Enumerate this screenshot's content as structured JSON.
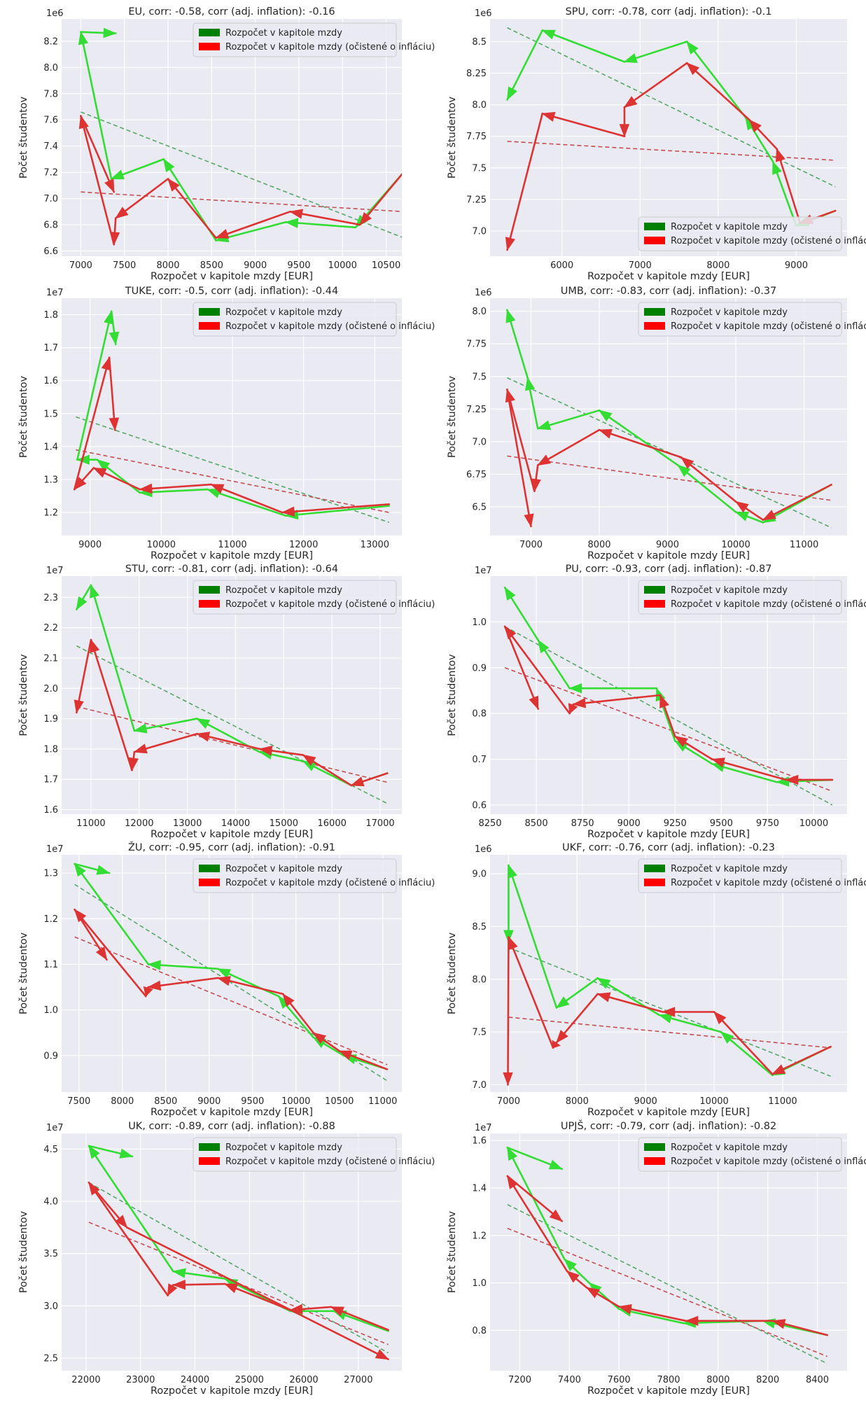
{
  "figure": {
    "colors": {
      "background": "#eaeaf2",
      "grid": "#ffffff",
      "nominal_line": "#33dd33",
      "adjusted_line": "#dd3333",
      "nominal_trend": "#55a868",
      "adjusted_trend": "#c44e52",
      "legend_nominal": "#008000",
      "legend_adjusted": "#ff0000"
    },
    "legend": [
      "Rozpočet v kapitole mzdy",
      "Rozpočet v kapitole mzdy (očistené o infláciu)"
    ],
    "xlabel": "Rozpočet v kapitole mzdy [EUR]",
    "ylabel": "Počet študentov"
  },
  "chart_data": [
    {
      "type": "line",
      "title": "EU, corr: -0.58, corr (adj. inflation): -0.16",
      "xlabel": "Rozpočet v kapitole mzdy [EUR]",
      "ylabel": "Počet študentov",
      "y_scale": "1e6",
      "legend_placement": "top-right",
      "grid": true,
      "xlim": [
        6780,
        10680
      ],
      "ylim": [
        6.56,
        8.37
      ],
      "xticks": [
        7000,
        7500,
        8000,
        8500,
        9000,
        9500,
        10000,
        10500
      ],
      "yticks": [
        6.6,
        6.8,
        7.0,
        7.2,
        7.4,
        7.6,
        7.8,
        8.0,
        8.2
      ],
      "series": [
        {
          "name": "Rozpočet v kapitole mzdy",
          "x": [
            10700,
            10150,
            9350,
            8550,
            7950,
            7350,
            7000,
            7400
          ],
          "y": [
            7.2,
            6.78,
            6.82,
            6.68,
            7.3,
            7.15,
            8.27,
            8.26
          ]
        },
        {
          "name": "Rozpočet v kapitole mzdy (očistené o infláciu)",
          "x": [
            10700,
            10200,
            9400,
            8550,
            8000,
            7400,
            7380,
            7000,
            7380
          ],
          "y": [
            7.2,
            6.8,
            6.9,
            6.7,
            7.15,
            6.85,
            6.65,
            7.63,
            7.05
          ]
        }
      ],
      "trend_lines": [
        {
          "x": [
            7000,
            10700
          ],
          "y": [
            7.66,
            6.7
          ]
        },
        {
          "x": [
            7000,
            10700
          ],
          "y": [
            7.05,
            6.9
          ]
        }
      ]
    },
    {
      "type": "line",
      "title": "SPU, corr: -0.78, corr (adj. inflation): -0.1",
      "xlabel": "Rozpočet v kapitole mzdy [EUR]",
      "ylabel": "Počet študentov",
      "y_scale": "1e6",
      "legend_placement": "bottom-right",
      "grid": true,
      "xlim": [
        5080,
        9650
      ],
      "ylim": [
        6.8,
        8.68
      ],
      "xticks": [
        6000,
        7000,
        8000,
        9000
      ],
      "yticks": [
        7.0,
        7.25,
        7.5,
        7.75,
        8.0,
        8.25,
        8.5
      ],
      "series": [
        {
          "name": "Rozpočet v kapitole mzdy",
          "x": [
            9500,
            9000,
            8700,
            8350,
            7600,
            6800,
            5750,
            5300
          ],
          "y": [
            7.16,
            7.04,
            7.55,
            7.9,
            8.5,
            8.34,
            8.59,
            8.04
          ]
        },
        {
          "name": "Rozpočet v kapitole mzdy (očistené o infláciu)",
          "x": [
            9500,
            9050,
            8750,
            8400,
            7600,
            6800,
            6800,
            5750,
            5300
          ],
          "y": [
            7.16,
            7.06,
            7.65,
            7.88,
            8.33,
            7.98,
            7.75,
            7.93,
            6.85
          ]
        }
      ],
      "trend_lines": [
        {
          "x": [
            5300,
            9500
          ],
          "y": [
            8.61,
            7.35
          ]
        },
        {
          "x": [
            5300,
            9500
          ],
          "y": [
            7.71,
            7.56
          ]
        }
      ]
    },
    {
      "type": "line",
      "title": "TUKE, corr: -0.5, corr (adj. inflation): -0.44",
      "xlabel": "Rozpočet v kapitole mzdy [EUR]",
      "ylabel": "Počet študentov",
      "y_scale": "1e7",
      "legend_placement": "top-right",
      "grid": true,
      "xlim": [
        8600,
        13380
      ],
      "ylim": [
        1.13,
        1.85
      ],
      "xticks": [
        9000,
        10000,
        11000,
        12000,
        13000
      ],
      "yticks": [
        1.2,
        1.3,
        1.4,
        1.5,
        1.6,
        1.7,
        1.8
      ],
      "series": [
        {
          "name": "Rozpočet v kapitole mzdy",
          "x": [
            13200,
            11750,
            10650,
            9700,
            9100,
            8820,
            9300,
            9360
          ],
          "y": [
            1.22,
            1.19,
            1.27,
            1.26,
            1.36,
            1.36,
            1.81,
            1.71
          ]
        },
        {
          "name": "Rozpočet v kapitole mzdy (očistené o infláciu)",
          "x": [
            13200,
            11700,
            10700,
            9700,
            9050,
            8780,
            9270,
            9350
          ],
          "y": [
            1.225,
            1.2,
            1.285,
            1.27,
            1.335,
            1.27,
            1.67,
            1.45
          ]
        }
      ],
      "trend_lines": [
        {
          "x": [
            8800,
            13200
          ],
          "y": [
            1.49,
            1.17
          ]
        },
        {
          "x": [
            8800,
            13200
          ],
          "y": [
            1.39,
            1.2
          ]
        }
      ]
    },
    {
      "type": "line",
      "title": "UMB, corr: -0.83, corr (adj. inflation): -0.37",
      "xlabel": "Rozpočet v kapitole mzdy [EUR]",
      "ylabel": "Počet študentov",
      "y_scale": "1e6",
      "legend_placement": "top-right",
      "grid": true,
      "xlim": [
        6400,
        11630
      ],
      "ylim": [
        6.28,
        8.1
      ],
      "xticks": [
        7000,
        8000,
        9000,
        10000,
        11000
      ],
      "yticks": [
        6.5,
        6.75,
        7.0,
        7.25,
        7.5,
        7.75,
        8.0
      ],
      "series": [
        {
          "name": "Rozpočet v kapitole mzdy",
          "x": [
            11400,
            10400,
            10000,
            9150,
            8000,
            7100,
            6950,
            6650
          ],
          "y": [
            6.67,
            6.38,
            6.46,
            6.82,
            7.24,
            7.1,
            7.49,
            8.01
          ]
        },
        {
          "name": "Rozpočet v kapitole mzdy (očistené o infláciu)",
          "x": [
            11400,
            10400,
            10000,
            9200,
            8000,
            7100,
            7050,
            6650,
            7000
          ],
          "y": [
            6.67,
            6.4,
            6.54,
            6.88,
            7.09,
            6.82,
            6.62,
            7.4,
            6.35
          ]
        }
      ],
      "trend_lines": [
        {
          "x": [
            6650,
            11400
          ],
          "y": [
            7.49,
            6.34
          ]
        },
        {
          "x": [
            6650,
            11400
          ],
          "y": [
            6.89,
            6.55
          ]
        }
      ]
    },
    {
      "type": "line",
      "title": "STU, corr: -0.81, corr (adj. inflation): -0.64",
      "xlabel": "Rozpočet v kapitole mzdy [EUR]",
      "ylabel": "Počet študentov",
      "y_scale": "1e7",
      "legend_placement": "top-right",
      "grid": true,
      "xlim": [
        10390,
        17450
      ],
      "ylim": [
        1.585,
        2.37
      ],
      "xticks": [
        11000,
        12000,
        13000,
        14000,
        15000,
        16000,
        17000
      ],
      "yticks": [
        1.6,
        1.7,
        1.8,
        1.9,
        2.0,
        2.1,
        2.2,
        2.3
      ],
      "series": [
        {
          "name": "Rozpočet v kapitole mzdy",
          "x": [
            17150,
            16400,
            15400,
            14500,
            13200,
            11900,
            11000,
            10700
          ],
          "y": [
            1.72,
            1.68,
            1.76,
            1.79,
            1.9,
            1.86,
            2.34,
            2.26
          ]
        },
        {
          "name": "Rozpočet v kapitole mzdy (očistené o infláciu)",
          "x": [
            17150,
            16400,
            15400,
            14500,
            13200,
            11900,
            11850,
            11000,
            10700
          ],
          "y": [
            1.72,
            1.68,
            1.78,
            1.8,
            1.85,
            1.79,
            1.73,
            2.16,
            1.92
          ]
        }
      ],
      "trend_lines": [
        {
          "x": [
            10700,
            17150
          ],
          "y": [
            2.14,
            1.62
          ]
        },
        {
          "x": [
            10700,
            17150
          ],
          "y": [
            1.94,
            1.69
          ]
        }
      ]
    },
    {
      "type": "line",
      "title": "PU, corr: -0.93, corr (adj. inflation): -0.87",
      "xlabel": "Rozpočet v kapitole mzdy [EUR]",
      "ylabel": "Počet študentov",
      "y_scale": "1e7",
      "legend_placement": "top-right",
      "grid": true,
      "xlim": [
        8250,
        10180
      ],
      "ylim": [
        0.58,
        1.1
      ],
      "xticks": [
        8250,
        8500,
        8750,
        9000,
        9250,
        9500,
        9750,
        10000
      ],
      "yticks": [
        0.6,
        0.7,
        0.8,
        0.9,
        1.0
      ],
      "series": [
        {
          "name": "Rozpočet v kapitole mzdy",
          "x": [
            10100,
            9800,
            9450,
            9250,
            9150,
            8680,
            8510,
            8330
          ],
          "y": [
            0.655,
            0.65,
            0.69,
            0.74,
            0.855,
            0.855,
            0.96,
            1.075
          ]
        },
        {
          "name": "Rozpočet v kapitole mzdy (očistené o infláciu)",
          "x": [
            10100,
            9850,
            9450,
            9250,
            9170,
            8700,
            8680,
            8330,
            8510
          ],
          "y": [
            0.655,
            0.655,
            0.7,
            0.75,
            0.84,
            0.82,
            0.8,
            0.99,
            0.81
          ]
        }
      ],
      "trend_lines": [
        {
          "x": [
            8330,
            10100
          ],
          "y": [
            0.99,
            0.6
          ]
        },
        {
          "x": [
            8330,
            10100
          ],
          "y": [
            0.9,
            0.63
          ]
        }
      ]
    },
    {
      "type": "line",
      "title": "ŽU, corr: -0.95, corr (adj. inflation): -0.91",
      "xlabel": "Rozpočet v kapitole mzdy [EUR]",
      "ylabel": "Počet študentov",
      "y_scale": "1e7",
      "legend_placement": "top-right",
      "grid": true,
      "xlim": [
        7300,
        11220
      ],
      "ylim": [
        0.82,
        1.34
      ],
      "xticks": [
        7500,
        8000,
        8500,
        9000,
        9500,
        10000,
        10500,
        11000
      ],
      "yticks": [
        0.9,
        1.0,
        1.1,
        1.2,
        1.3
      ],
      "series": [
        {
          "name": "Rozpočet v kapitole mzdy",
          "x": [
            11050,
            10550,
            10200,
            9800,
            9100,
            8300,
            7450,
            7850
          ],
          "y": [
            0.87,
            0.9,
            0.94,
            1.03,
            1.09,
            1.1,
            1.32,
            1.3
          ]
        },
        {
          "name": "Rozpočet v kapitole mzdy (očistené o infláciu)",
          "x": [
            11050,
            10500,
            10200,
            9850,
            9100,
            8300,
            8270,
            7450,
            7820
          ],
          "y": [
            0.87,
            0.91,
            0.95,
            1.035,
            1.07,
            1.05,
            1.03,
            1.22,
            1.11
          ]
        }
      ],
      "trend_lines": [
        {
          "x": [
            7450,
            11050
          ],
          "y": [
            1.275,
            0.845
          ]
        },
        {
          "x": [
            7450,
            11050
          ],
          "y": [
            1.16,
            0.88
          ]
        }
      ]
    },
    {
      "type": "line",
      "title": "UKF, corr: -0.76, corr (adj. inflation): -0.23",
      "xlabel": "Rozpočet v kapitole mzdy [EUR]",
      "ylabel": "Počet študentov",
      "y_scale": "1e6",
      "legend_placement": "top-right",
      "grid": true,
      "xlim": [
        6730,
        11940
      ],
      "ylim": [
        6.93,
        9.18
      ],
      "xticks": [
        7000,
        8000,
        9000,
        10000,
        11000
      ],
      "yticks": [
        7.0,
        7.5,
        8.0,
        8.5,
        9.0
      ],
      "series": [
        {
          "name": "Rozpočet v kapitole mzdy",
          "x": [
            11700,
            10850,
            10100,
            9200,
            8300,
            7700,
            7000,
            7000
          ],
          "y": [
            7.36,
            7.09,
            7.5,
            7.66,
            8.01,
            7.73,
            9.08,
            8.35
          ]
        },
        {
          "name": "Rozpočet v kapitole mzdy (očistené o infláciu)",
          "x": [
            11700,
            10850,
            10000,
            9250,
            8300,
            7700,
            7650,
            7000,
            6990
          ],
          "y": [
            7.36,
            7.1,
            7.69,
            7.69,
            7.86,
            7.4,
            7.35,
            8.4,
            7.0
          ]
        }
      ],
      "trend_lines": [
        {
          "x": [
            7000,
            11700
          ],
          "y": [
            8.3,
            7.08
          ]
        },
        {
          "x": [
            7000,
            11700
          ],
          "y": [
            7.64,
            7.35
          ]
        }
      ]
    },
    {
      "type": "line",
      "title": "UK, corr: -0.89, corr (adj. inflation): -0.88",
      "xlabel": "Rozpočet v kapitole mzdy [EUR]",
      "ylabel": "Počet študentov",
      "y_scale": "1e7",
      "legend_placement": "top-right",
      "grid": true,
      "xlim": [
        21550,
        27800
      ],
      "ylim": [
        2.38,
        4.65
      ],
      "xticks": [
        22000,
        23000,
        24000,
        25000,
        26000,
        27000
      ],
      "yticks": [
        2.5,
        3.0,
        3.5,
        4.0,
        4.5
      ],
      "series": [
        {
          "name": "Rozpočet v kapitole mzdy",
          "x": [
            27550,
            26550,
            25750,
            24550,
            23600,
            22050,
            22850
          ],
          "y": [
            2.76,
            2.95,
            2.95,
            3.26,
            3.33,
            4.53,
            4.43
          ]
        },
        {
          "name": "Rozpočet v kapitole mzdy (očistené o infláciu)",
          "x": [
            27550,
            26500,
            25750,
            24550,
            23600,
            23500,
            22050,
            22750,
            27550
          ],
          "y": [
            2.77,
            2.99,
            2.96,
            3.21,
            3.2,
            3.1,
            4.18,
            3.75,
            2.49
          ]
        }
      ],
      "trend_lines": [
        {
          "x": [
            22050,
            27550
          ],
          "y": [
            4.18,
            2.55
          ]
        },
        {
          "x": [
            22050,
            27550
          ],
          "y": [
            3.8,
            2.63
          ]
        }
      ]
    },
    {
      "type": "line",
      "title": "UPJŠ, corr: -0.79, corr (adj. inflation): -0.82",
      "xlabel": "Rozpočet v kapitole mzdy [EUR]",
      "ylabel": "Počet študentov",
      "y_scale": "1e7",
      "legend_placement": "top-right",
      "grid": true,
      "xlim": [
        7080,
        8520
      ],
      "ylim": [
        0.63,
        1.63
      ],
      "xticks": [
        7200,
        7400,
        7600,
        7800,
        8000,
        8200,
        8400
      ],
      "yticks": [
        0.8,
        1.0,
        1.2,
        1.4,
        1.6
      ],
      "series": [
        {
          "name": "Rozpočet v kapitole mzdy",
          "x": [
            8440,
            8180,
            7860,
            7600,
            7480,
            7380,
            7150,
            7370
          ],
          "y": [
            0.78,
            0.84,
            0.83,
            0.89,
            1.0,
            1.1,
            1.57,
            1.48
          ]
        },
        {
          "name": "Rozpočet v kapitole mzdy (očistené o infláciu)",
          "x": [
            8440,
            8220,
            7870,
            7600,
            7470,
            7390,
            7150,
            7370
          ],
          "y": [
            0.78,
            0.84,
            0.84,
            0.9,
            0.98,
            1.05,
            1.45,
            1.26
          ]
        }
      ],
      "trend_lines": [
        {
          "x": [
            7150,
            8440
          ],
          "y": [
            1.33,
            0.66
          ]
        },
        {
          "x": [
            7150,
            8440
          ],
          "y": [
            1.23,
            0.69
          ]
        }
      ]
    }
  ]
}
